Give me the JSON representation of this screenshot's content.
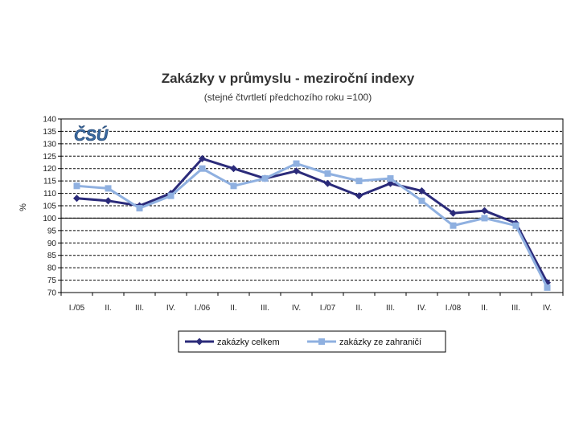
{
  "chart_data": {
    "type": "line",
    "title": "Zakázky v průmyslu - meziroční indexy",
    "subtitle": "(stejné čtvrtletí předchozího roku =100)",
    "ylabel": "%",
    "xlabel": "",
    "ylim": [
      70,
      140
    ],
    "yticks": [
      70,
      75,
      80,
      85,
      90,
      95,
      100,
      105,
      110,
      115,
      120,
      125,
      130,
      135,
      140
    ],
    "grid": true,
    "legend_position": "bottom",
    "logo_text": "ČSÚ",
    "categories": [
      "I./05",
      "II.",
      "III.",
      "IV.",
      "I./06",
      "II.",
      "III.",
      "IV.",
      "I./07",
      "II.",
      "III.",
      "IV.",
      "I./08",
      "II.",
      "III.",
      "IV."
    ],
    "series": [
      {
        "name": "zakázky celkem",
        "color": "#2b2b7a",
        "marker": "diamond",
        "values": [
          108,
          107,
          105,
          110,
          124,
          120,
          116,
          119,
          114,
          109,
          114,
          111,
          102,
          103,
          98,
          74
        ]
      },
      {
        "name": "zakázky ze zahraničí",
        "color": "#8fb0e0",
        "marker": "square",
        "values": [
          113,
          112,
          104,
          109,
          120,
          113,
          116,
          122,
          118,
          115,
          116,
          107,
          97,
          100,
          97,
          72
        ]
      }
    ]
  }
}
